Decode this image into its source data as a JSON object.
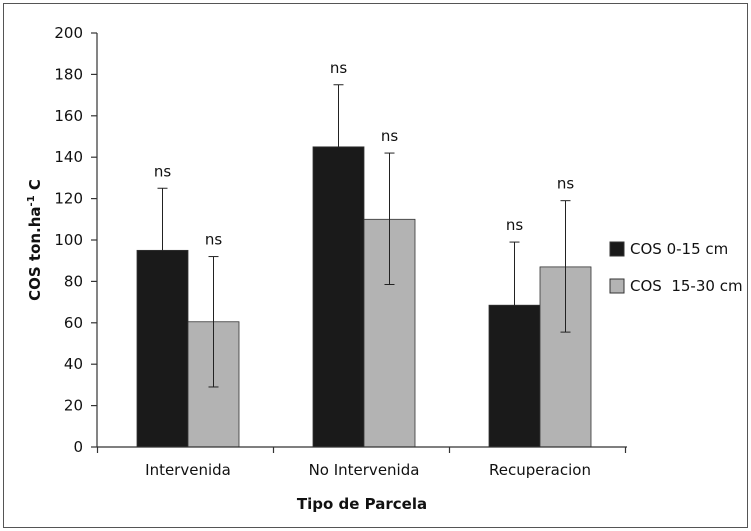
{
  "chart_data": {
    "type": "bar",
    "title": "",
    "xlabel": "Tipo de Parcela",
    "ylabel_main": "COS ton.ha",
    "ylabel_sup": "-1",
    "ylabel_tail": " C",
    "categories": [
      "Intervenida",
      "No Intervenida",
      "Recuperacion"
    ],
    "series": [
      {
        "name": "COS 0-15 cm",
        "color": "#1a1a1a",
        "values": [
          95,
          145,
          68.5
        ],
        "error_high": [
          125,
          175,
          99
        ],
        "error_low": [
          95,
          145,
          68.5
        ],
        "annotations": [
          "ns",
          "ns",
          "ns"
        ]
      },
      {
        "name": "COS  15-30 cm",
        "color": "#b3b3b3",
        "values": [
          60.5,
          110,
          87
        ],
        "error_high": [
          92,
          142,
          119
        ],
        "error_low": [
          29,
          78.5,
          55.5
        ],
        "annotations": [
          "ns",
          "ns",
          "ns"
        ]
      }
    ],
    "ylim": [
      0,
      200
    ],
    "yticks": [
      0,
      20,
      40,
      60,
      80,
      100,
      120,
      140,
      160,
      180,
      200
    ],
    "grid": false,
    "legend_position": "right"
  }
}
